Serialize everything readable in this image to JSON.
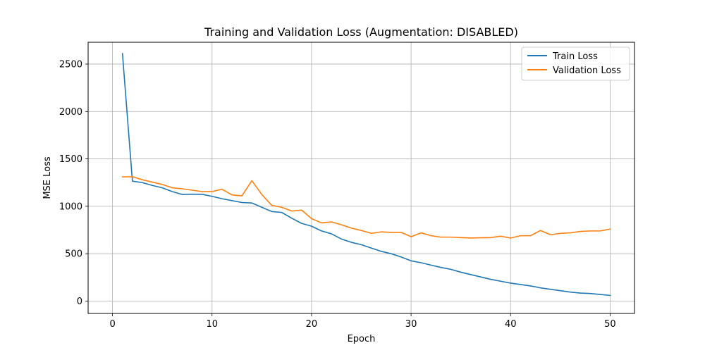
{
  "chart_data": {
    "type": "line",
    "title": "Training and Validation Loss (Augmentation: DISABLED)",
    "xlabel": "Epoch",
    "ylabel": "MSE Loss",
    "xlim": [
      -2.45,
      52.45
    ],
    "ylim": [
      -130,
      2730
    ],
    "xticks": [
      0,
      10,
      20,
      30,
      40,
      50
    ],
    "yticks": [
      0,
      500,
      1000,
      1500,
      2000,
      2500
    ],
    "grid": true,
    "legend_position": "upper right",
    "x": [
      1,
      2,
      3,
      4,
      5,
      6,
      7,
      8,
      9,
      10,
      11,
      12,
      13,
      14,
      15,
      16,
      17,
      18,
      19,
      20,
      21,
      22,
      23,
      24,
      25,
      26,
      27,
      28,
      29,
      30,
      31,
      32,
      33,
      34,
      35,
      36,
      37,
      38,
      39,
      40,
      41,
      42,
      43,
      44,
      45,
      46,
      47,
      48,
      49,
      50
    ],
    "series": [
      {
        "name": "Train Loss",
        "color": "#1f77b4",
        "values": [
          2610,
          1265,
          1250,
          1220,
          1195,
          1155,
          1125,
          1128,
          1127,
          1105,
          1080,
          1060,
          1040,
          1035,
          990,
          945,
          935,
          875,
          820,
          790,
          740,
          710,
          655,
          620,
          595,
          560,
          525,
          500,
          465,
          425,
          405,
          380,
          355,
          335,
          305,
          280,
          255,
          230,
          210,
          190,
          175,
          160,
          140,
          125,
          110,
          95,
          85,
          80,
          70,
          60
        ]
      },
      {
        "name": "Validation Loss",
        "color": "#ff7f0e",
        "values": [
          1310,
          1312,
          1280,
          1255,
          1230,
          1195,
          1185,
          1170,
          1155,
          1155,
          1180,
          1120,
          1110,
          1270,
          1125,
          1010,
          990,
          950,
          960,
          870,
          825,
          835,
          805,
          770,
          745,
          715,
          730,
          725,
          725,
          680,
          720,
          690,
          675,
          675,
          670,
          665,
          668,
          670,
          685,
          665,
          690,
          690,
          745,
          700,
          715,
          720,
          735,
          740,
          740,
          760
        ]
      }
    ]
  }
}
